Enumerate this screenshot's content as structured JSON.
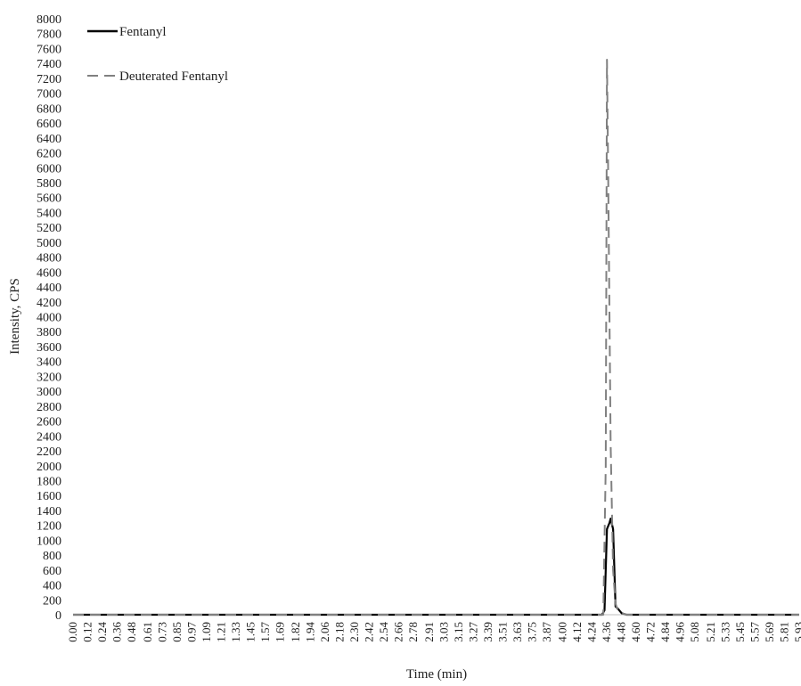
{
  "chart_data": {
    "type": "line",
    "title": "",
    "xlabel": "Time (min)",
    "ylabel": "Intensity, CPS",
    "ylim": [
      0,
      8000
    ],
    "ytick_step": 200,
    "xlim": [
      0.0,
      5.93
    ],
    "x_tick_labels": [
      "0.00",
      "0.12",
      "0.24",
      "0.36",
      "0.48",
      "0.61",
      "0.73",
      "0.85",
      "0.97",
      "1.09",
      "1.21",
      "1.33",
      "1.45",
      "1.57",
      "1.69",
      "1.82",
      "1.94",
      "2.06",
      "2.18",
      "2.30",
      "2.42",
      "2.54",
      "2.66",
      "2.78",
      "2.91",
      "3.03",
      "3.15",
      "3.27",
      "3.39",
      "3.51",
      "3.63",
      "3.75",
      "3.87",
      "4.00",
      "4.12",
      "4.24",
      "4.36",
      "4.48",
      "4.60",
      "4.72",
      "4.84",
      "4.96",
      "5.08",
      "5.21",
      "5.33",
      "5.45",
      "5.57",
      "5.69",
      "5.81",
      "5.93"
    ],
    "grid": false,
    "legend_position": "top-left",
    "series": [
      {
        "name": "Fentanyl",
        "color": "#000000",
        "dash": "solid",
        "points": [
          [
            0.0,
            0
          ],
          [
            4.24,
            0
          ],
          [
            4.32,
            0
          ],
          [
            4.34,
            60
          ],
          [
            4.36,
            1150
          ],
          [
            4.38,
            1230
          ],
          [
            4.39,
            1290
          ],
          [
            4.41,
            1150
          ],
          [
            4.43,
            110
          ],
          [
            4.45,
            80
          ],
          [
            4.48,
            20
          ],
          [
            4.52,
            0
          ],
          [
            5.93,
            0
          ]
        ]
      },
      {
        "name": "Deuterated Fentanyl",
        "color": "#808080",
        "dash": "dashed",
        "points": [
          [
            0.0,
            0
          ],
          [
            4.24,
            0
          ],
          [
            4.33,
            0
          ],
          [
            4.35,
            2000
          ],
          [
            4.36,
            7450
          ],
          [
            4.37,
            5900
          ],
          [
            4.39,
            2300
          ],
          [
            4.41,
            600
          ],
          [
            4.43,
            150
          ],
          [
            4.45,
            50
          ],
          [
            4.48,
            20
          ],
          [
            4.52,
            0
          ],
          [
            5.93,
            0
          ]
        ]
      }
    ]
  }
}
